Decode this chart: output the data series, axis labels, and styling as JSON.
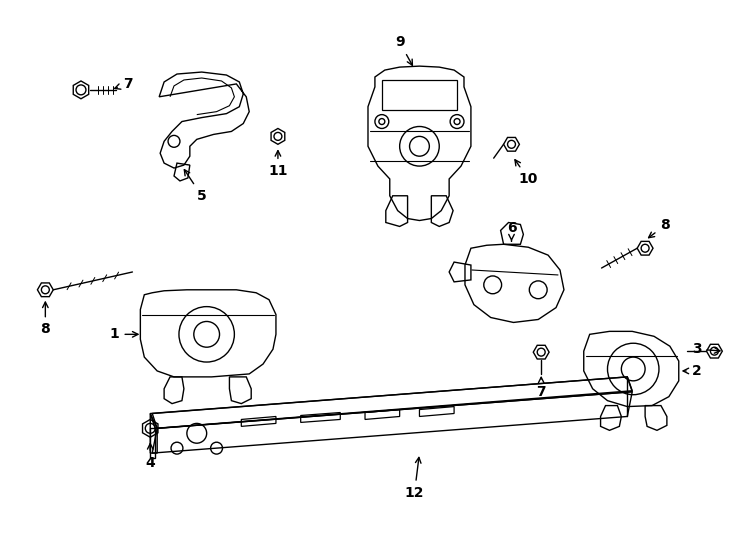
{
  "background_color": "#ffffff",
  "fig_width": 7.34,
  "fig_height": 5.4,
  "dpi": 100,
  "line_color": "#000000",
  "lw": 1.0,
  "label_fontsize": 10,
  "label_fontweight": "bold"
}
